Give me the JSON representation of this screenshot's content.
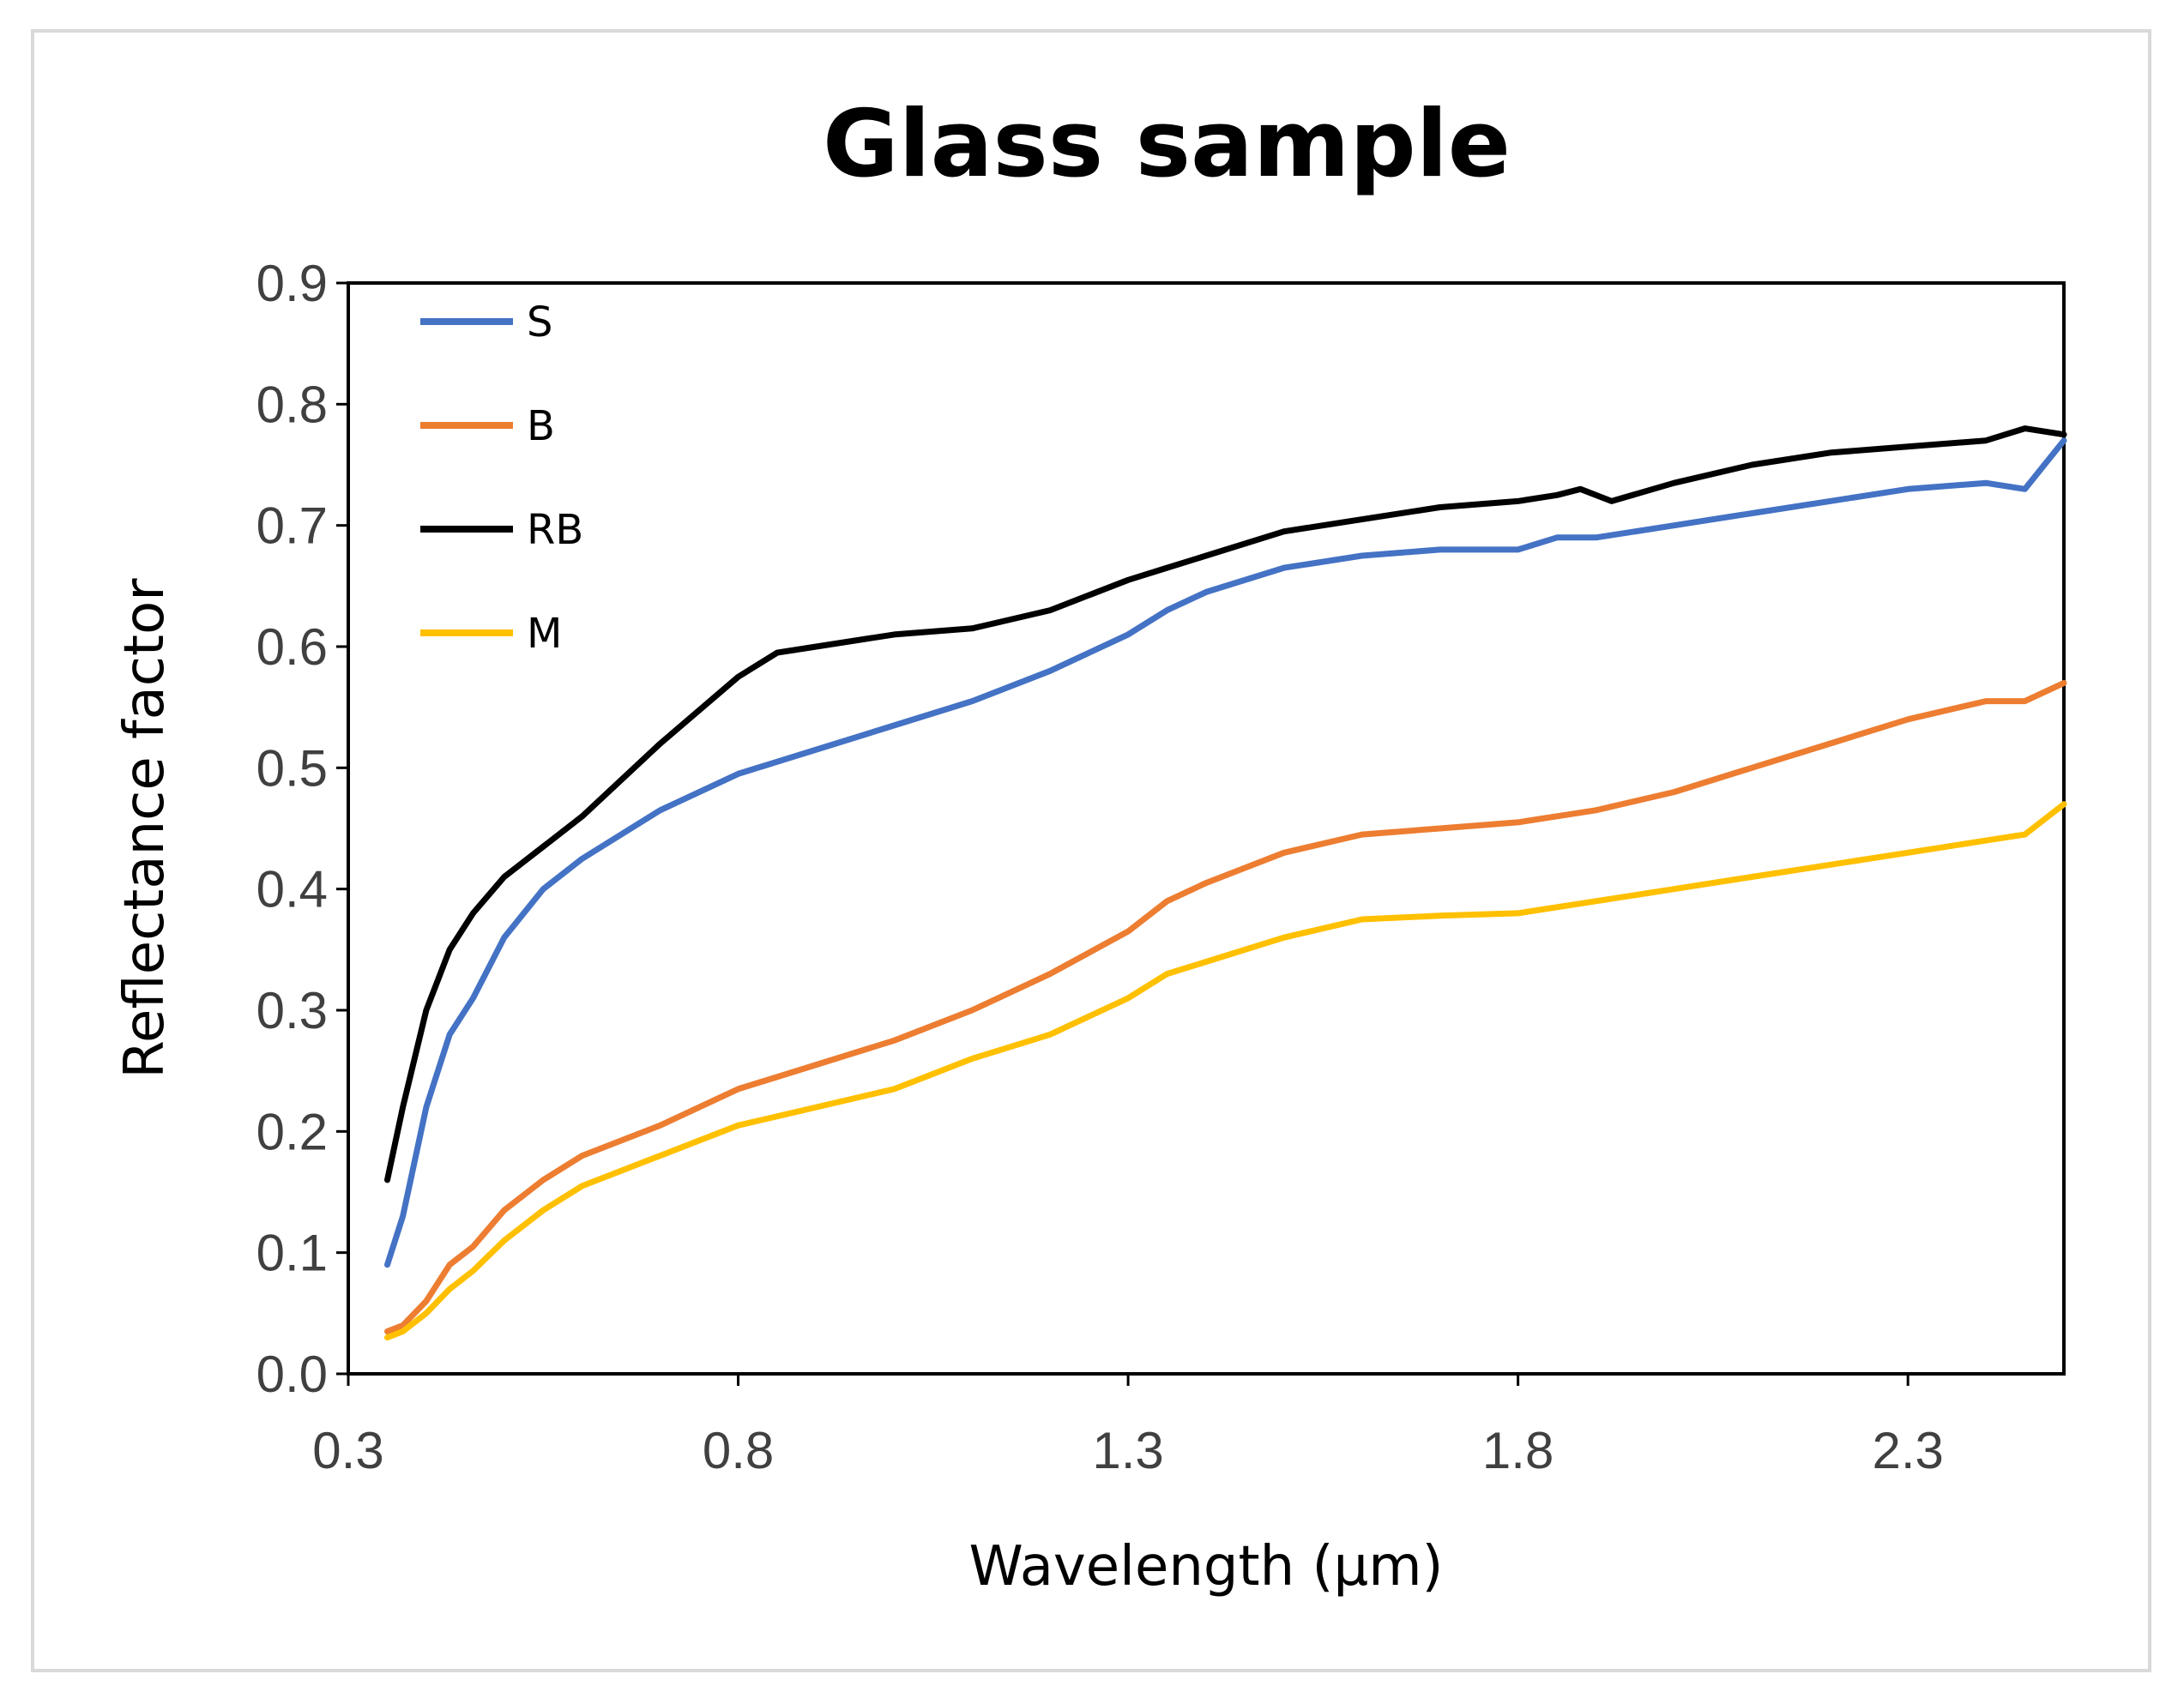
{
  "chart_data": {
    "type": "line",
    "title": "Glass sample",
    "xlabel": "Wavelength (µm)",
    "ylabel": "Reflectance factor",
    "xlim": [
      0.3,
      2.5
    ],
    "ylim": [
      0.0,
      0.9
    ],
    "xticks": [
      "0.3",
      "0.8",
      "1.3",
      "1.8",
      "2.3"
    ],
    "yticks": [
      "0.0",
      "0.1",
      "0.2",
      "0.3",
      "0.4",
      "0.5",
      "0.6",
      "0.7",
      "0.8",
      "0.9"
    ],
    "legend_position": "top-left",
    "series": [
      {
        "name": "S",
        "color": "#4472C4",
        "x": [
          0.35,
          0.37,
          0.4,
          0.43,
          0.46,
          0.5,
          0.55,
          0.6,
          0.7,
          0.8,
          0.9,
          1.0,
          1.1,
          1.2,
          1.3,
          1.35,
          1.4,
          1.5,
          1.6,
          1.7,
          1.8,
          1.85,
          1.9,
          2.0,
          2.1,
          2.2,
          2.3,
          2.4,
          2.45,
          2.5
        ],
        "y": [
          0.09,
          0.13,
          0.22,
          0.28,
          0.31,
          0.36,
          0.4,
          0.425,
          0.465,
          0.495,
          0.515,
          0.535,
          0.555,
          0.58,
          0.61,
          0.63,
          0.645,
          0.665,
          0.675,
          0.68,
          0.68,
          0.69,
          0.69,
          0.7,
          0.71,
          0.72,
          0.73,
          0.735,
          0.73,
          0.77
        ]
      },
      {
        "name": "B",
        "color": "#ED7D31",
        "x": [
          0.35,
          0.37,
          0.4,
          0.43,
          0.46,
          0.5,
          0.55,
          0.6,
          0.7,
          0.8,
          0.9,
          1.0,
          1.1,
          1.2,
          1.3,
          1.35,
          1.4,
          1.5,
          1.6,
          1.7,
          1.8,
          1.9,
          2.0,
          2.1,
          2.2,
          2.3,
          2.4,
          2.45,
          2.5
        ],
        "y": [
          0.035,
          0.04,
          0.06,
          0.09,
          0.105,
          0.135,
          0.16,
          0.18,
          0.205,
          0.235,
          0.255,
          0.275,
          0.3,
          0.33,
          0.365,
          0.39,
          0.405,
          0.43,
          0.445,
          0.45,
          0.455,
          0.465,
          0.48,
          0.5,
          0.52,
          0.54,
          0.555,
          0.555,
          0.57
        ]
      },
      {
        "name": "RB",
        "color": "#000000",
        "x": [
          0.35,
          0.37,
          0.4,
          0.43,
          0.46,
          0.5,
          0.55,
          0.6,
          0.7,
          0.8,
          0.85,
          0.9,
          1.0,
          1.1,
          1.2,
          1.3,
          1.35,
          1.4,
          1.5,
          1.6,
          1.7,
          1.8,
          1.85,
          1.88,
          1.92,
          2.0,
          2.1,
          2.2,
          2.3,
          2.4,
          2.45,
          2.5
        ],
        "y": [
          0.16,
          0.22,
          0.3,
          0.35,
          0.38,
          0.41,
          0.435,
          0.46,
          0.52,
          0.575,
          0.595,
          0.6,
          0.61,
          0.615,
          0.63,
          0.655,
          0.665,
          0.675,
          0.695,
          0.705,
          0.715,
          0.72,
          0.725,
          0.73,
          0.72,
          0.735,
          0.75,
          0.76,
          0.765,
          0.77,
          0.78,
          0.775
        ]
      },
      {
        "name": "M",
        "color": "#FFC000",
        "x": [
          0.35,
          0.37,
          0.4,
          0.43,
          0.46,
          0.5,
          0.55,
          0.6,
          0.7,
          0.8,
          0.9,
          1.0,
          1.1,
          1.2,
          1.3,
          1.35,
          1.4,
          1.5,
          1.6,
          1.7,
          1.8,
          1.9,
          2.0,
          2.1,
          2.2,
          2.3,
          2.4,
          2.45,
          2.5
        ],
        "y": [
          0.03,
          0.035,
          0.05,
          0.07,
          0.085,
          0.11,
          0.135,
          0.155,
          0.18,
          0.205,
          0.22,
          0.235,
          0.26,
          0.28,
          0.31,
          0.33,
          0.34,
          0.36,
          0.375,
          0.378,
          0.38,
          0.39,
          0.4,
          0.41,
          0.42,
          0.43,
          0.44,
          0.445,
          0.47
        ]
      }
    ]
  }
}
